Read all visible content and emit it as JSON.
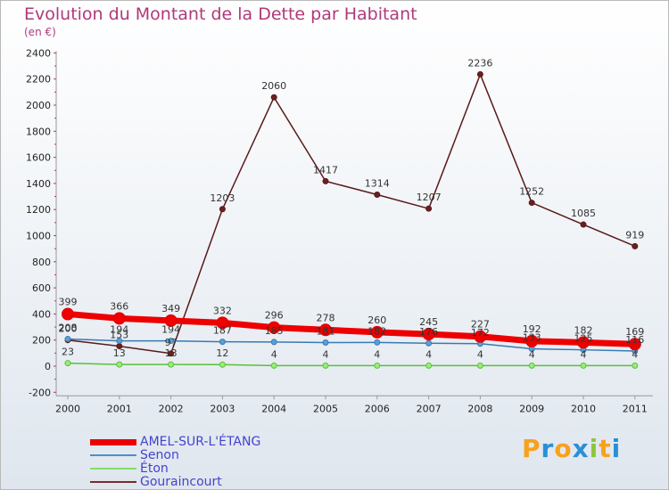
{
  "header": {
    "title": "Evolution du Montant de la Dette par Habitant",
    "unit": "(en €)"
  },
  "logo": {
    "text": "Proxiti",
    "colors": [
      "#f7a21b",
      "#2a8fd6",
      "#f7a21b",
      "#2a8fd6",
      "#8cc63f",
      "#f7a21b",
      "#2a8fd6"
    ]
  },
  "chart_data": {
    "type": "line",
    "title": "Evolution du Montant de la Dette par Habitant",
    "ylabel": "(en €)",
    "xlabel": "",
    "x": [
      "2000",
      "2001",
      "2002",
      "2003",
      "2004",
      "2005",
      "2006",
      "2007",
      "2008",
      "2009",
      "2010",
      "2011"
    ],
    "ylim": [
      -200,
      2400
    ],
    "yticks": [
      "-200",
      "0",
      "200",
      "400",
      "600",
      "800",
      "1000",
      "1200",
      "1400",
      "1600",
      "1800",
      "2000",
      "2200",
      "2400"
    ],
    "grid": false,
    "legend_position": "bottom-left",
    "series": [
      {
        "name": "AMEL-SUR-L'ÉTANG",
        "color": "#ee0000",
        "values": [
          399,
          366,
          349,
          332,
          296,
          278,
          260,
          245,
          227,
          192,
          182,
          169
        ],
        "labels": [
          "399",
          "366",
          "349",
          "332",
          "296",
          "278",
          "260",
          "245",
          "227",
          "192",
          "182",
          "169"
        ]
      },
      {
        "name": "Senon",
        "color": "#4a90c9",
        "values": [
          208,
          194,
          194,
          187,
          185,
          181,
          182,
          176,
          172,
          133,
          125,
          116
        ],
        "labels": [
          "208",
          "194",
          "194",
          "187",
          "185",
          "181",
          "182",
          "176",
          "172",
          "133",
          "125",
          "116"
        ]
      },
      {
        "name": "Éton",
        "color": "#88dd66",
        "values": [
          23,
          13,
          13,
          12,
          4,
          4,
          4,
          4,
          4,
          4,
          4,
          4
        ],
        "labels": [
          "23",
          "13",
          "13",
          "12",
          "4",
          "4",
          "4",
          "4",
          "4",
          "4",
          "4",
          "4"
        ]
      },
      {
        "name": "Gouraincourt",
        "color": "#7a2a2a",
        "values": [
          200,
          153,
          97,
          1203,
          2060,
          1417,
          1314,
          1207,
          2236,
          1252,
          1085,
          919
        ],
        "labels": [
          "200",
          "153",
          "97",
          "1203",
          "2060",
          "1417",
          "1314",
          "1207",
          "2236",
          "1252",
          "1085",
          "919"
        ]
      }
    ]
  }
}
